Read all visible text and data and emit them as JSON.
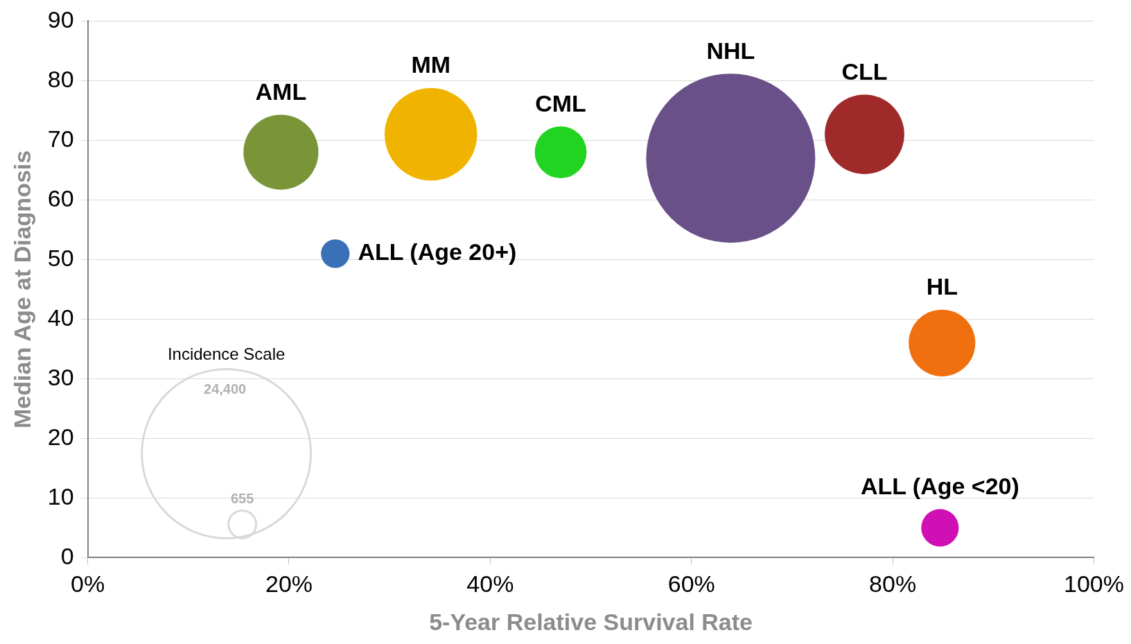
{
  "chart_data": {
    "type": "bubble",
    "xlabel": "5-Year Relative Survival Rate",
    "ylabel": "Median Age at Diagnosis",
    "legend_title": "Incidence Scale",
    "size_legend": [
      {
        "value": 655,
        "label": "655"
      },
      {
        "value": 24400,
        "label": "24,400"
      }
    ],
    "xlim": [
      0,
      100
    ],
    "xticks": [
      {
        "value": 0,
        "label": "0%"
      },
      {
        "value": 20,
        "label": "20%"
      },
      {
        "value": 40,
        "label": "40%"
      },
      {
        "value": 60,
        "label": "60%"
      },
      {
        "value": 80,
        "label": "80%"
      },
      {
        "value": 100,
        "label": "100%"
      }
    ],
    "ylim": [
      0,
      90
    ],
    "yticks": [
      0,
      10,
      20,
      30,
      40,
      50,
      60,
      70,
      80,
      90
    ],
    "grid": "y",
    "legend": false,
    "series": [
      {
        "name": "AML",
        "color": "#7a9438",
        "x": [
          19.2
        ],
        "values": [
          68
        ],
        "sizes": [
          4800
        ]
      },
      {
        "name": "MM",
        "color": "#f0b400",
        "x": [
          34.1
        ],
        "values": [
          71
        ],
        "sizes": [
          7300
        ]
      },
      {
        "name": "CML",
        "color": "#22d422",
        "x": [
          47
        ],
        "values": [
          68
        ],
        "sizes": [
          2300
        ]
      },
      {
        "name": "NHL",
        "color": "#6a5088",
        "x": [
          63.9
        ],
        "values": [
          67
        ],
        "sizes": [
          24400
        ]
      },
      {
        "name": "CLL",
        "color": "#a02a2a",
        "x": [
          77.2
        ],
        "values": [
          71
        ],
        "sizes": [
          5400
        ]
      },
      {
        "name": "ALL (Age 20+)",
        "color": "#3a70b8",
        "x": [
          24.6
        ],
        "values": [
          51
        ],
        "sizes": [
          700
        ]
      },
      {
        "name": "HL",
        "color": "#f07010",
        "x": [
          84.9
        ],
        "values": [
          36
        ],
        "sizes": [
          3800
        ]
      },
      {
        "name": "ALL (Age <20)",
        "color": "#d010b4",
        "x": [
          84.7
        ],
        "values": [
          5
        ],
        "sizes": [
          1200
        ]
      }
    ]
  }
}
